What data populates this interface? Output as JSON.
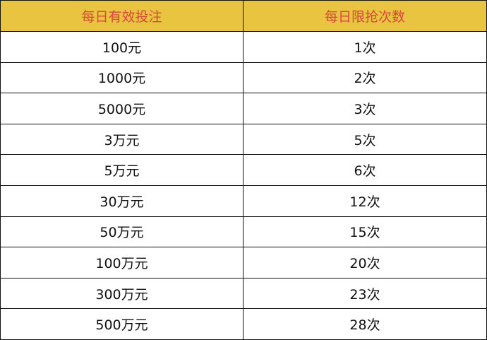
{
  "colors": {
    "header_bg": "#E8C440",
    "header_text": "#D9473B"
  },
  "headers": [
    "每日有效投注",
    "每日限抢次数"
  ],
  "rows": [
    [
      "100元",
      "1次"
    ],
    [
      "1000元",
      "2次"
    ],
    [
      "5000元",
      "3次"
    ],
    [
      "3万元",
      "5次"
    ],
    [
      "5万元",
      "6次"
    ],
    [
      "30万元",
      "12次"
    ],
    [
      "50万元",
      "15次"
    ],
    [
      "100万元",
      "20次"
    ],
    [
      "300万元",
      "23次"
    ],
    [
      "500万元",
      "28次"
    ]
  ]
}
